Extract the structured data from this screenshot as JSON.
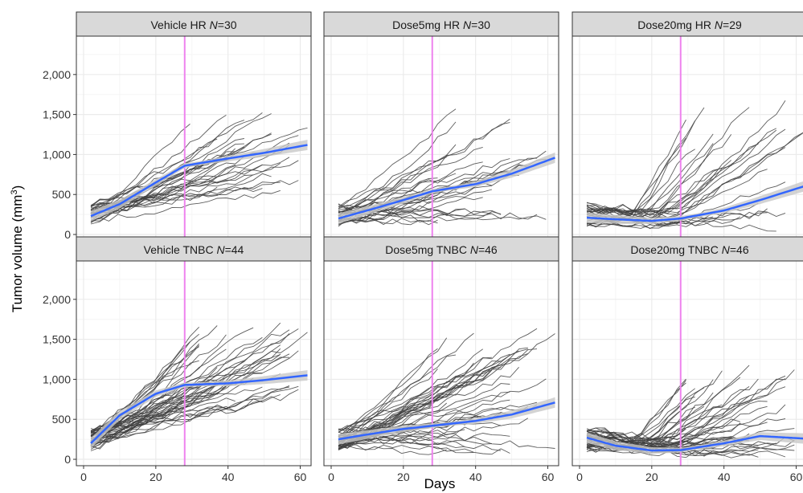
{
  "chart_data": {
    "type": "line",
    "xlabel": "Days",
    "ylabel_main": "Tumor volume (mm",
    "ylabel_sup": "3",
    "ylabel_end": ")",
    "xlim": [
      -2,
      63
    ],
    "ylim": [
      -80,
      2480
    ],
    "x_ticks": [
      0,
      20,
      40,
      60
    ],
    "x_tick_labels": [
      "0",
      "20",
      "40",
      "60"
    ],
    "y_ticks": [
      0,
      500,
      1000,
      1500,
      2000
    ],
    "y_tick_labels": [
      "0",
      "500",
      "1,000",
      "1,500",
      "2,000"
    ],
    "grid": true,
    "vline_day": 28,
    "colors": {
      "strip_bg": "#d9d9d9",
      "grid_major": "#ebebeb",
      "grid_minor": "#f5f5f5",
      "panel_border": "#333333",
      "individual": "#404040",
      "smooth": "#3366ff",
      "smooth_ci": "#c8c8c8",
      "vline": "#ee82ee"
    },
    "panels": [
      {
        "strip_prefix": "Vehicle HR ",
        "n_italic": "N",
        "n_value": "=30",
        "n_lines": 30,
        "smooth_x": [
          2,
          10,
          20,
          28,
          40,
          50,
          62
        ],
        "smooth_y": [
          230,
          380,
          650,
          860,
          950,
          1020,
          1120
        ],
        "spread": [
          120,
          1900
        ],
        "end_range": [
          550,
          1600
        ],
        "pattern": "growth"
      },
      {
        "strip_prefix": "Dose5mg HR ",
        "n_italic": "N",
        "n_value": "=30",
        "n_lines": 30,
        "smooth_x": [
          2,
          10,
          20,
          28,
          40,
          50,
          62
        ],
        "smooth_y": [
          200,
          300,
          430,
          540,
          630,
          760,
          960
        ],
        "spread": [
          100,
          1750
        ],
        "end_range": [
          130,
          1700
        ],
        "pattern": "growth"
      },
      {
        "strip_prefix": "Dose20mg HR ",
        "n_italic": "N",
        "n_value": "=29",
        "n_lines": 29,
        "smooth_x": [
          2,
          10,
          20,
          28,
          40,
          50,
          62
        ],
        "smooth_y": [
          210,
          190,
          170,
          200,
          300,
          430,
          600
        ],
        "spread": [
          50,
          1750
        ],
        "end_range": [
          60,
          1750
        ],
        "pattern": "delayed"
      },
      {
        "strip_prefix": "Vehicle TNBC ",
        "n_italic": "N",
        "n_value": "=44",
        "n_lines": 44,
        "smooth_x": [
          2,
          10,
          20,
          28,
          40,
          50,
          62
        ],
        "smooth_y": [
          200,
          550,
          820,
          930,
          950,
          990,
          1050
        ],
        "spread": [
          150,
          2300
        ],
        "end_range": [
          650,
          1750
        ],
        "pattern": "growth"
      },
      {
        "strip_prefix": "Dose5mg TNBC ",
        "n_italic": "N",
        "n_value": "=46",
        "n_lines": 46,
        "smooth_x": [
          2,
          10,
          20,
          28,
          40,
          50,
          62
        ],
        "smooth_y": [
          250,
          310,
          380,
          420,
          480,
          560,
          710
        ],
        "spread": [
          0,
          1850
        ],
        "end_range": [
          0,
          1700
        ],
        "pattern": "growth"
      },
      {
        "strip_prefix": "Dose20mg TNBC ",
        "n_italic": "N",
        "n_value": "=46",
        "n_lines": 46,
        "smooth_x": [
          2,
          10,
          20,
          28,
          40,
          50,
          62
        ],
        "smooth_y": [
          270,
          170,
          110,
          115,
          200,
          290,
          260
        ],
        "spread": [
          0,
          2050
        ],
        "end_range": [
          0,
          1150
        ],
        "pattern": "delayed"
      }
    ]
  }
}
